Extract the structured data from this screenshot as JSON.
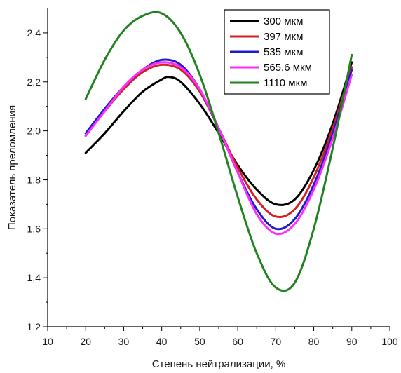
{
  "chart_data": {
    "type": "line",
    "xlabel": "Степень нейтрализации, %",
    "ylabel": "Показатель преломления",
    "xlim": [
      10,
      100
    ],
    "ylim": [
      1.2,
      2.5
    ],
    "xticks": [
      10,
      20,
      30,
      40,
      50,
      60,
      70,
      80,
      90,
      100
    ],
    "yticks": [
      1.2,
      1.4,
      1.6,
      1.8,
      2.0,
      2.2,
      2.4
    ],
    "xtick_labels": [
      "10",
      "20",
      "30",
      "40",
      "50",
      "60",
      "70",
      "80",
      "90",
      "100"
    ],
    "ytick_labels": [
      "1,2",
      "1,4",
      "1,6",
      "1,8",
      "2,0",
      "2,2",
      "2,4"
    ],
    "grid": false,
    "legend_position": "top-right",
    "series": [
      {
        "name": "300 мкм",
        "color": "#000000",
        "x": [
          20,
          25,
          30,
          35,
          40,
          42,
          45,
          50,
          55,
          60,
          65,
          70,
          75,
          80,
          85,
          90
        ],
        "y": [
          1.91,
          1.99,
          2.08,
          2.16,
          2.21,
          2.22,
          2.2,
          2.11,
          1.99,
          1.86,
          1.76,
          1.7,
          1.72,
          1.84,
          2.03,
          2.28
        ]
      },
      {
        "name": "397 мкм",
        "color": "#d42020",
        "x": [
          20,
          25,
          30,
          35,
          40,
          45,
          50,
          55,
          60,
          65,
          70,
          75,
          80,
          85,
          90
        ],
        "y": [
          1.98,
          2.08,
          2.17,
          2.24,
          2.27,
          2.25,
          2.16,
          2.01,
          1.85,
          1.72,
          1.65,
          1.68,
          1.81,
          2.01,
          2.26
        ]
      },
      {
        "name": "535 мкм",
        "color": "#1d1dc8",
        "x": [
          20,
          25,
          30,
          35,
          40,
          45,
          50,
          55,
          60,
          65,
          70,
          75,
          80,
          85,
          90
        ],
        "y": [
          1.99,
          2.09,
          2.18,
          2.25,
          2.29,
          2.27,
          2.17,
          2.01,
          1.83,
          1.68,
          1.6,
          1.64,
          1.78,
          1.99,
          2.25
        ]
      },
      {
        "name": "565,6 мкм",
        "color": "#ff2bff",
        "x": [
          20,
          25,
          30,
          35,
          40,
          45,
          50,
          55,
          60,
          65,
          70,
          75,
          80,
          85,
          90
        ],
        "y": [
          1.98,
          2.08,
          2.18,
          2.25,
          2.28,
          2.26,
          2.17,
          2.01,
          1.83,
          1.66,
          1.58,
          1.62,
          1.76,
          1.97,
          2.23
        ]
      },
      {
        "name": "1110 мкм",
        "color": "#218221",
        "x": [
          20,
          25,
          30,
          35,
          40,
          45,
          50,
          55,
          60,
          65,
          70,
          75,
          80,
          85,
          90
        ],
        "y": [
          2.13,
          2.29,
          2.41,
          2.47,
          2.48,
          2.4,
          2.23,
          1.99,
          1.73,
          1.5,
          1.36,
          1.38,
          1.6,
          1.93,
          2.31
        ]
      }
    ]
  }
}
